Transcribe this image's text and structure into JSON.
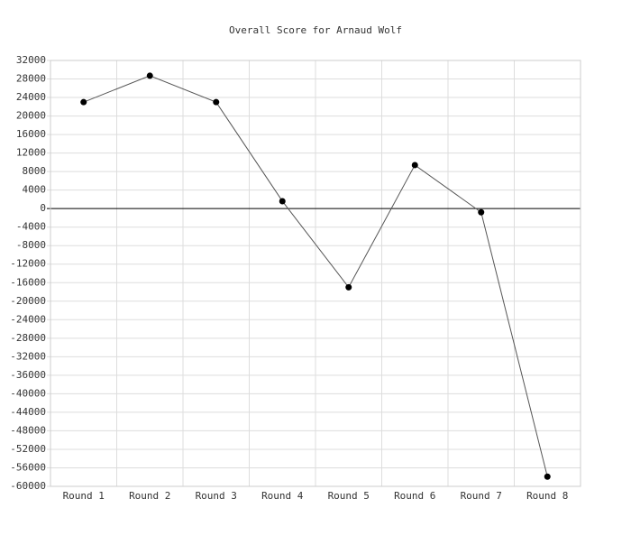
{
  "chart_data": {
    "type": "line",
    "title": "Overall Score for Arnaud Wolf",
    "categories": [
      "Round 1",
      "Round 2",
      "Round 3",
      "Round 4",
      "Round 5",
      "Round 6",
      "Round 7",
      "Round 8"
    ],
    "values": [
      23000,
      28700,
      23000,
      1600,
      -17000,
      9400,
      -800,
      -57900
    ],
    "color": "#555555",
    "marker_color": "#000000",
    "ylim": [
      -60000,
      32000
    ],
    "yticks": [
      -60000,
      -56000,
      -52000,
      -48000,
      -44000,
      -40000,
      -36000,
      -32000,
      -28000,
      -24000,
      -20000,
      -16000,
      -12000,
      -8000,
      -4000,
      0,
      4000,
      8000,
      12000,
      16000,
      20000,
      24000,
      28000,
      32000
    ],
    "grid": true
  }
}
